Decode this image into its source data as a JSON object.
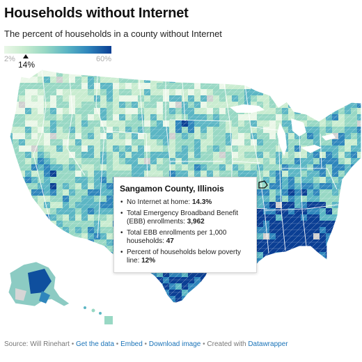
{
  "title": "Households without Internet",
  "subtitle": "The percent of households in a county without Internet",
  "legend": {
    "min_label": "2%",
    "max_label": "60%",
    "current_value": "14%",
    "color_low": "#eaf7e8",
    "color_high": "#0b3f94"
  },
  "colors": {
    "scale": [
      "#eaf7e8",
      "#c9ecd0",
      "#98d8c4",
      "#5cb6c4",
      "#2f86bc",
      "#0b3f94"
    ],
    "background": "#ffffff",
    "link": "#1a73b8"
  },
  "tooltip": {
    "county": "Sangamon County, Illinois",
    "items": [
      {
        "label": "No Internet at home: ",
        "value": "14.3%"
      },
      {
        "label": "Total Emergency Broadband Benefit (EBB) enrollments: ",
        "value": "3,962"
      },
      {
        "label": "Total EBB enrollments per 1,000 households: ",
        "value": "47"
      },
      {
        "label": "Percent of households below poverty line: ",
        "value": "12%"
      }
    ]
  },
  "footer": {
    "source": "Source: Will Rinehart",
    "sep": " • ",
    "get_data": "Get the data",
    "embed": "Embed",
    "download": "Download image",
    "created_with": "Created with ",
    "tool": "Datawrapper"
  }
}
